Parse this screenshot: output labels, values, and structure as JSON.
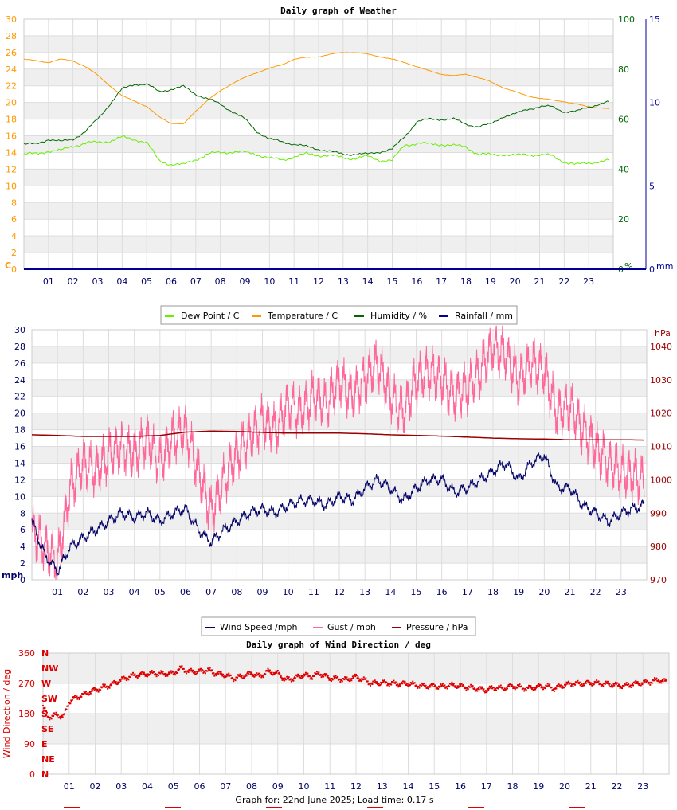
{
  "footer": "Graph for: 22nd June 2025; Load time: 0.17 s",
  "chart_data": [
    {
      "type": "line",
      "title": "Daily graph of Weather",
      "x_ticks": [
        "01",
        "02",
        "03",
        "04",
        "05",
        "06",
        "07",
        "08",
        "09",
        "10",
        "11",
        "12",
        "13",
        "14",
        "15",
        "16",
        "17",
        "18",
        "19",
        "20",
        "21",
        "22",
        "23"
      ],
      "x_range": [
        0,
        24
      ],
      "left_axis": {
        "label": "C",
        "ylim": [
          0,
          30
        ],
        "ticks": [
          0,
          2,
          4,
          6,
          8,
          10,
          12,
          14,
          16,
          18,
          20,
          22,
          24,
          26,
          28,
          30
        ],
        "color": "#ff9900"
      },
      "right_axis_1": {
        "label": "%",
        "ylim": [
          0,
          100
        ],
        "ticks": [
          0,
          20,
          40,
          60,
          80,
          100
        ],
        "color": "#006600"
      },
      "right_axis_2": {
        "label": "mm",
        "ylim": [
          0,
          15
        ],
        "ticks": [
          0,
          5,
          10,
          15
        ],
        "color": "#000099"
      },
      "legend": [
        "Dew Point / C",
        "Temperature / C",
        "Humidity / %",
        "Rainfall / mm"
      ],
      "series": [
        {
          "name": "Dew Point / C",
          "axis": "left",
          "color": "#66ee00",
          "x": [
            0,
            0.5,
            1,
            1.5,
            2,
            2.5,
            3,
            3.5,
            4,
            4.5,
            5,
            5.5,
            6,
            6.5,
            7,
            7.5,
            8,
            8.5,
            9,
            9.5,
            10,
            10.5,
            11,
            11.5,
            12,
            12.5,
            13,
            13.5,
            14,
            14.5,
            15,
            15.5,
            16,
            16.5,
            17,
            17.5,
            18,
            18.5,
            19,
            19.5,
            20,
            20.5,
            21,
            21.5,
            22,
            22.5,
            23,
            23.9
          ],
          "y": [
            13.8,
            13.8,
            14.2,
            14.2,
            14.8,
            15.1,
            15.2,
            15.4,
            15.8,
            15.6,
            15.2,
            13.0,
            12.6,
            12.5,
            13.2,
            13.8,
            14.0,
            14.1,
            14.0,
            13.8,
            13.3,
            13.1,
            13.5,
            13.8,
            13.7,
            13.6,
            13.4,
            13.3,
            13.5,
            13.1,
            13.0,
            14.9,
            15.1,
            15.0,
            15.0,
            14.8,
            14.7,
            13.8,
            13.7,
            13.8,
            13.6,
            13.8,
            13.7,
            13.6,
            12.9,
            12.5,
            12.8,
            13.0
          ]
        },
        {
          "name": "Temperature / C",
          "axis": "left",
          "color": "#ff9900",
          "x": [
            0,
            0.5,
            1,
            1.5,
            2,
            2.5,
            3,
            3.5,
            4,
            4.5,
            5,
            5.5,
            6,
            6.5,
            7,
            7.5,
            8,
            8.5,
            9,
            9.5,
            10,
            10.5,
            11,
            11.5,
            12,
            12.5,
            13,
            13.5,
            14,
            14.5,
            15,
            15.5,
            16,
            16.5,
            17,
            17.5,
            18,
            18.5,
            19,
            19.5,
            20,
            20.5,
            21,
            21.5,
            22,
            22.5,
            23,
            23.9
          ],
          "y": [
            25.2,
            25.0,
            24.8,
            25.2,
            25.0,
            24.3,
            23.3,
            22.0,
            20.8,
            20.2,
            19.5,
            18.3,
            17.5,
            17.4,
            19.0,
            20.3,
            21.4,
            22.3,
            23.0,
            23.6,
            24.1,
            24.5,
            25.2,
            25.4,
            25.5,
            25.8,
            26.0,
            26.0,
            25.8,
            25.5,
            25.2,
            24.8,
            24.3,
            23.8,
            23.4,
            23.2,
            23.4,
            23.0,
            22.5,
            21.8,
            21.3,
            20.8,
            20.5,
            20.3,
            20.1,
            19.8,
            19.5,
            19.2
          ]
        },
        {
          "name": "Humidity / %",
          "axis": "right1",
          "color": "#006600",
          "x": [
            0,
            0.5,
            1,
            1.5,
            2,
            2.5,
            3,
            3.5,
            4,
            4.5,
            5,
            5.5,
            6,
            6.5,
            7,
            7.5,
            8,
            8.5,
            9,
            9.5,
            10,
            10.5,
            11,
            11.5,
            12,
            12.5,
            13,
            13.5,
            14,
            14.5,
            15,
            15.5,
            16,
            16.5,
            17,
            17.5,
            18,
            18.5,
            19,
            19.5,
            20,
            20.5,
            21,
            21.5,
            22,
            22.5,
            23,
            23.9
          ],
          "y": [
            50,
            50,
            52,
            51,
            52,
            55,
            60,
            66,
            72,
            74,
            74,
            71,
            72,
            73,
            70,
            68,
            66,
            63,
            60,
            55,
            52,
            51,
            50,
            49,
            48,
            47,
            46,
            46,
            46,
            47,
            48,
            53,
            59,
            60,
            60,
            60,
            58,
            57,
            58,
            61,
            62,
            64,
            65,
            65,
            63,
            63,
            65,
            67
          ]
        },
        {
          "name": "Rainfall / mm",
          "axis": "right2",
          "color": "#000099",
          "x": [
            0,
            23.9
          ],
          "y": [
            0,
            0
          ]
        }
      ]
    },
    {
      "type": "line",
      "title": "",
      "x_ticks": [
        "01",
        "02",
        "03",
        "04",
        "05",
        "06",
        "07",
        "08",
        "09",
        "10",
        "11",
        "12",
        "13",
        "14",
        "15",
        "16",
        "17",
        "18",
        "19",
        "20",
        "21",
        "22",
        "23"
      ],
      "x_range": [
        0,
        24
      ],
      "left_axis": {
        "label": "mph",
        "ylim": [
          0,
          30
        ],
        "ticks": [
          0,
          2,
          4,
          6,
          8,
          10,
          12,
          14,
          16,
          18,
          20,
          22,
          24,
          26,
          28,
          30
        ],
        "color": "#000000"
      },
      "right_axis": {
        "label": "hPa",
        "ylim": [
          970,
          1045
        ],
        "ticks": [
          970,
          980,
          990,
          1000,
          1010,
          1020,
          1030,
          1040
        ],
        "color": "#990000"
      },
      "legend": [
        "Wind Speed /mph",
        "Gust / mph",
        "Pressure / hPa"
      ],
      "series": [
        {
          "name": "Wind Speed /mph",
          "axis": "left",
          "color": "#000066",
          "x": [
            0,
            0.5,
            1,
            1.5,
            2,
            2.5,
            3,
            3.5,
            4,
            4.5,
            5,
            5.5,
            6,
            6.5,
            7,
            7.5,
            8,
            8.5,
            9,
            9.5,
            10,
            10.5,
            11,
            11.5,
            12,
            12.5,
            13,
            13.5,
            14,
            14.5,
            15,
            15.5,
            16,
            16.5,
            17,
            17.5,
            18,
            18.5,
            19,
            19.5,
            20,
            20.5,
            21,
            21.5,
            22,
            22.5,
            23,
            23.9
          ],
          "y": [
            7,
            3,
            1,
            4,
            5,
            6,
            7,
            8,
            7.5,
            8,
            7,
            8,
            8.5,
            6,
            4.5,
            6,
            7,
            8,
            8.5,
            8,
            9,
            9.5,
            9.5,
            9,
            10,
            9.5,
            11,
            12,
            11,
            9.5,
            11,
            12,
            12,
            10.5,
            11,
            12,
            13,
            14,
            12,
            14,
            15,
            11,
            11,
            9,
            8,
            7,
            8,
            9
          ]
        },
        {
          "name": "Gust / mph",
          "axis": "left",
          "color": "#ff6699",
          "x": [
            0,
            0.5,
            1,
            1.5,
            2,
            2.5,
            3,
            3.5,
            4,
            4.5,
            5,
            5.5,
            6,
            6.5,
            7,
            7.5,
            8,
            8.5,
            9,
            9.5,
            10,
            10.5,
            11,
            11.5,
            12,
            12.5,
            13,
            13.5,
            14,
            14.5,
            15,
            15.5,
            16,
            16.5,
            17,
            17.5,
            18,
            18.5,
            19,
            19.5,
            20,
            20.5,
            21,
            21.5,
            22,
            22.5,
            23,
            23.9
          ],
          "y": [
            6,
            4,
            2,
            11,
            14,
            13,
            15,
            16,
            15,
            17,
            14,
            17,
            18,
            13,
            8,
            12,
            15,
            17,
            19,
            18,
            21,
            20,
            22,
            21,
            24,
            22,
            24,
            26,
            22,
            20,
            24,
            25,
            24,
            22,
            23,
            25,
            28,
            27,
            24,
            26,
            25,
            20,
            21,
            18,
            16,
            14,
            13,
            12
          ]
        },
        {
          "name": "Pressure / hPa",
          "axis": "right",
          "color": "#990000",
          "x": [
            0,
            1,
            2,
            3,
            4,
            5,
            6,
            7,
            8,
            9,
            10,
            11,
            12,
            13,
            14,
            15,
            16,
            17,
            18,
            19,
            20,
            21,
            22,
            23,
            23.9
          ],
          "y": [
            1013.5,
            1013.3,
            1013.0,
            1013.0,
            1013.0,
            1013.3,
            1014.3,
            1014.6,
            1014.5,
            1014.2,
            1014.0,
            1014.0,
            1014.0,
            1013.8,
            1013.5,
            1013.3,
            1013.1,
            1012.8,
            1012.5,
            1012.3,
            1012.2,
            1012.0,
            1012.0,
            1012.0,
            1011.9
          ]
        }
      ]
    },
    {
      "type": "scatter",
      "title": "Daily graph of Wind Direction / deg",
      "x_ticks": [
        "01",
        "02",
        "03",
        "04",
        "05",
        "06",
        "07",
        "08",
        "09",
        "10",
        "11",
        "12",
        "13",
        "14",
        "15",
        "16",
        "17",
        "18",
        "19",
        "20",
        "21",
        "22",
        "23"
      ],
      "x_range": [
        0,
        24
      ],
      "ylabel": "Wind Direction / deg",
      "ylim": [
        0,
        360
      ],
      "y_ticks": [
        0,
        90,
        180,
        270,
        360
      ],
      "compass_labels": [
        "N",
        "NE",
        "E",
        "SE",
        "S",
        "SW",
        "W",
        "NW",
        "N"
      ],
      "color": "#dd0000",
      "x": [
        0,
        0.2,
        0.5,
        0.8,
        1,
        1.2,
        1.5,
        1.8,
        2,
        2.3,
        2.6,
        3,
        3.3,
        3.6,
        4,
        4.3,
        4.6,
        5,
        5.3,
        5.6,
        6,
        6.3,
        6.6,
        7,
        7.3,
        7.6,
        8,
        8.3,
        8.6,
        9,
        9.3,
        9.6,
        10,
        10.3,
        10.6,
        11,
        11.3,
        11.6,
        12,
        12.3,
        12.6,
        13,
        13.3,
        13.6,
        14,
        14.3,
        14.6,
        15,
        15.3,
        15.6,
        16,
        16.3,
        16.6,
        17,
        17.3,
        17.6,
        18,
        18.3,
        18.6,
        19,
        19.3,
        19.6,
        20,
        20.3,
        20.6,
        21,
        21.3,
        21.6,
        22,
        22.3,
        22.6,
        23,
        23.3,
        23.6,
        23.9
      ],
      "y": [
        200,
        170,
        175,
        172,
        215,
        225,
        235,
        245,
        250,
        258,
        265,
        280,
        290,
        295,
        298,
        300,
        298,
        300,
        315,
        305,
        305,
        310,
        300,
        295,
        285,
        290,
        300,
        290,
        305,
        300,
        280,
        285,
        295,
        290,
        300,
        285,
        285,
        280,
        290,
        280,
        270,
        272,
        270,
        268,
        270,
        265,
        262,
        262,
        260,
        265,
        262,
        258,
        255,
        250,
        258,
        255,
        262,
        258,
        255,
        260,
        262,
        255,
        265,
        270,
        268,
        272,
        270,
        268,
        265,
        262,
        268,
        272,
        275,
        280,
        275
      ]
    }
  ]
}
